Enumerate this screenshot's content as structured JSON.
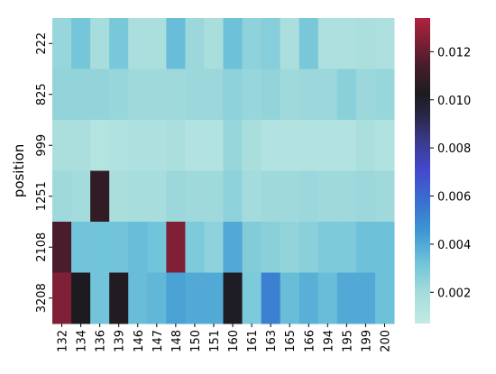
{
  "chart_data": {
    "type": "heatmap",
    "ylabel": "position",
    "xlabel": "",
    "x_categories": [
      "132",
      "134",
      "136",
      "139",
      "146",
      "147",
      "148",
      "150",
      "151",
      "160",
      "161",
      "163",
      "165",
      "166",
      "194",
      "195",
      "199",
      "200"
    ],
    "y_categories": [
      "222",
      "825",
      "999",
      "1251",
      "2108",
      "3208"
    ],
    "values": [
      [
        0.0023,
        0.0031,
        0.0019,
        0.003,
        0.0017,
        0.0017,
        0.0034,
        0.0022,
        0.0018,
        0.0033,
        0.0025,
        0.0027,
        0.0017,
        0.003,
        0.0016,
        0.0016,
        0.0017,
        0.0016
      ],
      [
        0.0024,
        0.0024,
        0.0024,
        0.0023,
        0.0021,
        0.0021,
        0.0021,
        0.0022,
        0.0022,
        0.0025,
        0.0023,
        0.0024,
        0.0021,
        0.0022,
        0.0022,
        0.0026,
        0.0022,
        0.0023
      ],
      [
        0.0017,
        0.0017,
        0.0013,
        0.0015,
        0.0016,
        0.0016,
        0.0017,
        0.0014,
        0.0014,
        0.0023,
        0.0018,
        0.0014,
        0.0014,
        0.0014,
        0.0014,
        0.0014,
        0.0017,
        0.0015
      ],
      [
        0.0021,
        0.002,
        0.0108,
        0.0018,
        0.0019,
        0.0019,
        0.0022,
        0.0021,
        0.0021,
        0.0025,
        0.002,
        0.0021,
        0.0021,
        0.0022,
        0.0021,
        0.0021,
        0.0022,
        0.0021
      ],
      [
        0.0115,
        0.0032,
        0.0032,
        0.0032,
        0.0034,
        0.0032,
        0.0125,
        0.0029,
        0.0025,
        0.004,
        0.0028,
        0.0026,
        0.0024,
        0.0026,
        0.0029,
        0.0029,
        0.0033,
        0.0033
      ],
      [
        0.0125,
        0.0102,
        0.0032,
        0.0104,
        0.0034,
        0.0036,
        0.0042,
        0.004,
        0.004,
        0.0101,
        0.0029,
        0.0052,
        0.0034,
        0.0038,
        0.0034,
        0.004,
        0.004,
        0.0033
      ]
    ],
    "colorbar": {
      "ticks": [
        0.002,
        0.004,
        0.006,
        0.008,
        0.01,
        0.012
      ],
      "tick_labels": [
        "0.002",
        "0.004",
        "0.006",
        "0.008",
        "0.010",
        "0.012"
      ],
      "range": [
        0.0007,
        0.0134
      ]
    },
    "colormap": "icefire",
    "colors": {
      "low": "#b8e6df",
      "mid_low": "#3e97d3",
      "mid": "#4349cc",
      "dark": "#1c1b1f",
      "high": "#b0223f"
    }
  }
}
